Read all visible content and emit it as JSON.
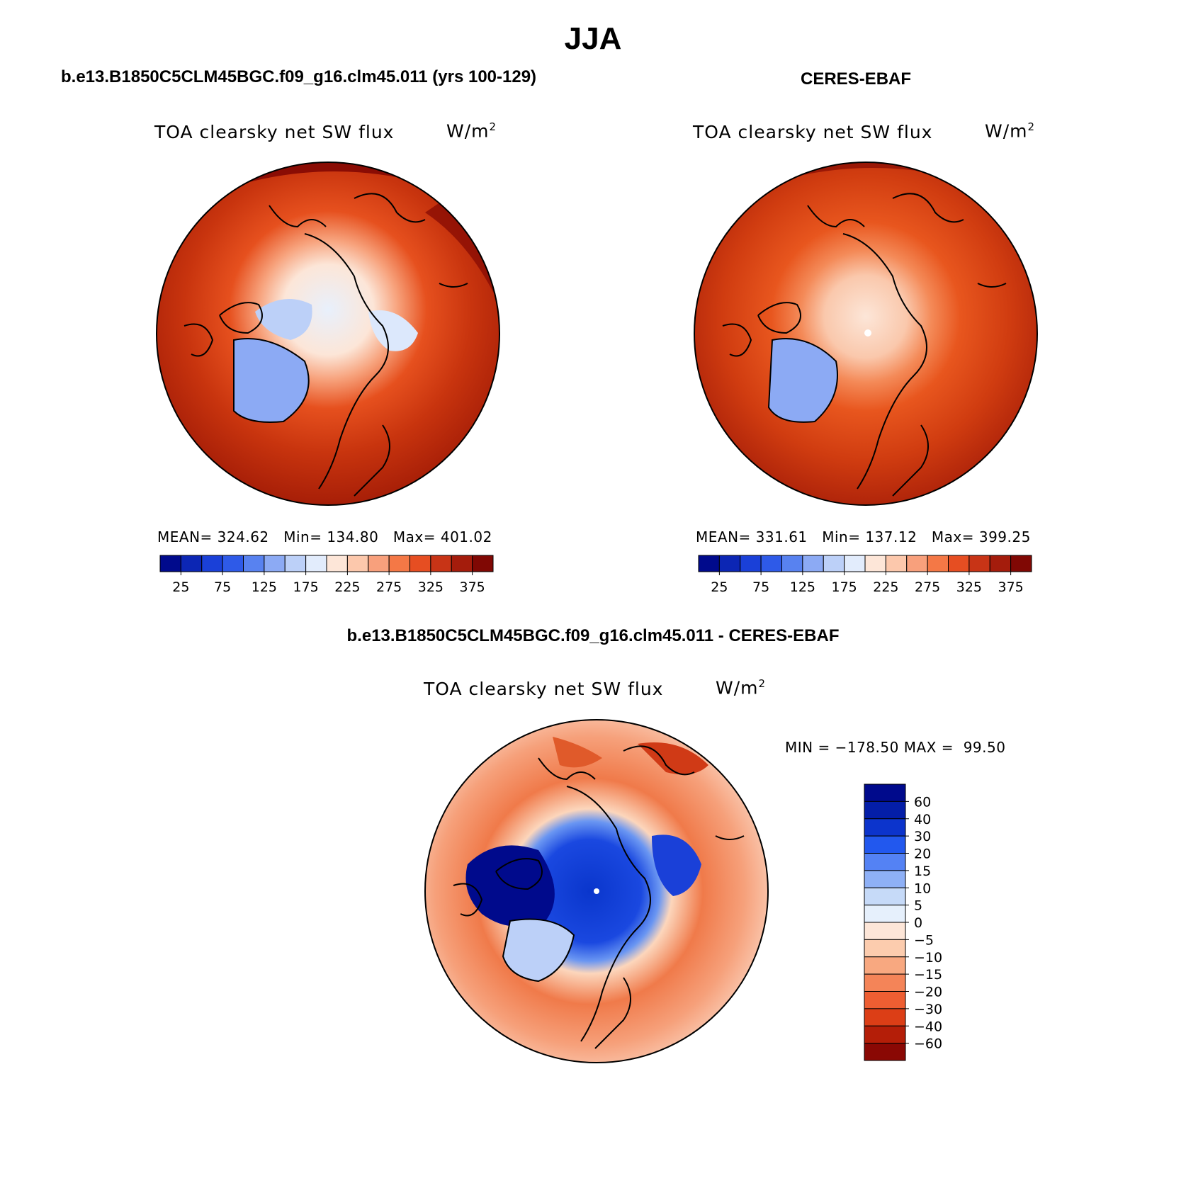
{
  "title": "JJA",
  "panels": {
    "model": {
      "case_title": "b.e13.B1850C5CLM45BGC.f09_g16.clm45.011 (yrs 100-129)",
      "variable": "TOA clearsky net SW flux",
      "units": "W/m",
      "units_exp": "2",
      "stats": {
        "mean_label": "MEAN=",
        "mean": "324.62",
        "min_label": "Min=",
        "min": "134.80",
        "max_label": "Max=",
        "max": "401.02"
      }
    },
    "obs": {
      "case_title": "CERES-EBAF",
      "variable": "TOA clearsky net SW flux",
      "units": "W/m",
      "units_exp": "2",
      "stats": {
        "mean_label": "MEAN=",
        "mean": "331.61",
        "min_label": "Min=",
        "min": "137.12",
        "max_label": "Max=",
        "max": "399.25"
      }
    },
    "diff": {
      "case_title": "b.e13.B1850C5CLM45BGC.f09_g16.clm45.011 - CERES-EBAF",
      "variable": "TOA clearsky net SW flux",
      "units": "W/m",
      "units_exp": "2",
      "stats": {
        "min_label": "MIN =",
        "min": "−178.50",
        "max_label": "MAX =",
        "max": "99.50"
      }
    }
  },
  "chart_data": {
    "type": "heatmap",
    "projection": "north polar stereographic",
    "abs_colorbar": {
      "colors": [
        "#000a8c",
        "#0c26b4",
        "#1a40d8",
        "#2e5ae8",
        "#5882f0",
        "#8caaf4",
        "#bcd0f8",
        "#e2ecfc",
        "#fde6d8",
        "#fcc8ac",
        "#f8a07c",
        "#f47846",
        "#e64e22",
        "#c83416",
        "#a41c0c",
        "#800804"
      ],
      "tick_labels": [
        "25",
        "75",
        "125",
        "175",
        "225",
        "275",
        "325",
        "375"
      ]
    },
    "diff_colorbar": {
      "colors": [
        "#000a8c",
        "#041ea8",
        "#0c34cc",
        "#2258ee",
        "#5482f4",
        "#8eb0f6",
        "#c6daf8",
        "#e6f0fc",
        "#fde6d8",
        "#fcccae",
        "#f8a880",
        "#f48458",
        "#ee5e32",
        "#dc3e16",
        "#b41e08",
        "#8a0804"
      ],
      "tick_labels": [
        "60",
        "40",
        "30",
        "20",
        "15",
        "10",
        "5",
        "0",
        "−5",
        "−10",
        "−15",
        "−20",
        "−30",
        "−40",
        "−60"
      ]
    }
  }
}
